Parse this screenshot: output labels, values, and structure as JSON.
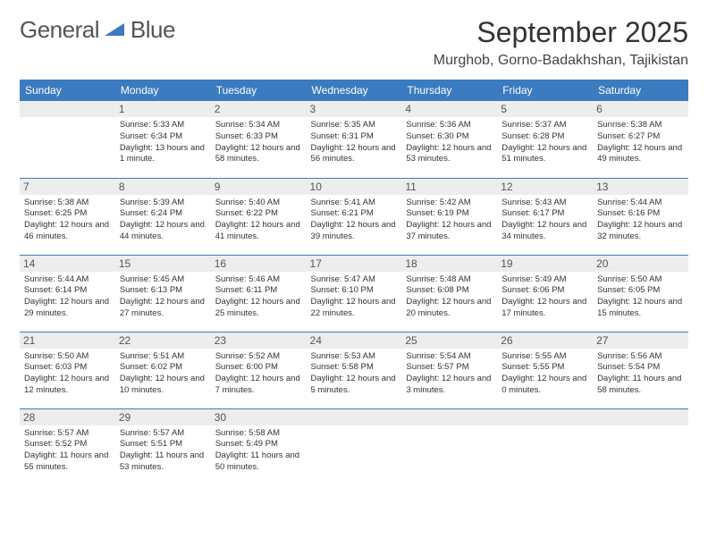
{
  "logo": {
    "word1": "General",
    "word2": "Blue"
  },
  "colors": {
    "brand": "#3b7bbf",
    "dayband": "#eceded",
    "text": "#333333"
  },
  "title": "September 2025",
  "location": "Murghob, Gorno-Badakhshan, Tajikistan",
  "weekdays": [
    "Sunday",
    "Monday",
    "Tuesday",
    "Wednesday",
    "Thursday",
    "Friday",
    "Saturday"
  ],
  "grid": [
    [
      {
        "empty": true
      },
      {
        "n": "1",
        "sr": "Sunrise: 5:33 AM",
        "ss": "Sunset: 6:34 PM",
        "dl": "Daylight: 13 hours and 1 minute."
      },
      {
        "n": "2",
        "sr": "Sunrise: 5:34 AM",
        "ss": "Sunset: 6:33 PM",
        "dl": "Daylight: 12 hours and 58 minutes."
      },
      {
        "n": "3",
        "sr": "Sunrise: 5:35 AM",
        "ss": "Sunset: 6:31 PM",
        "dl": "Daylight: 12 hours and 56 minutes."
      },
      {
        "n": "4",
        "sr": "Sunrise: 5:36 AM",
        "ss": "Sunset: 6:30 PM",
        "dl": "Daylight: 12 hours and 53 minutes."
      },
      {
        "n": "5",
        "sr": "Sunrise: 5:37 AM",
        "ss": "Sunset: 6:28 PM",
        "dl": "Daylight: 12 hours and 51 minutes."
      },
      {
        "n": "6",
        "sr": "Sunrise: 5:38 AM",
        "ss": "Sunset: 6:27 PM",
        "dl": "Daylight: 12 hours and 49 minutes."
      }
    ],
    [
      {
        "n": "7",
        "sr": "Sunrise: 5:38 AM",
        "ss": "Sunset: 6:25 PM",
        "dl": "Daylight: 12 hours and 46 minutes."
      },
      {
        "n": "8",
        "sr": "Sunrise: 5:39 AM",
        "ss": "Sunset: 6:24 PM",
        "dl": "Daylight: 12 hours and 44 minutes."
      },
      {
        "n": "9",
        "sr": "Sunrise: 5:40 AM",
        "ss": "Sunset: 6:22 PM",
        "dl": "Daylight: 12 hours and 41 minutes."
      },
      {
        "n": "10",
        "sr": "Sunrise: 5:41 AM",
        "ss": "Sunset: 6:21 PM",
        "dl": "Daylight: 12 hours and 39 minutes."
      },
      {
        "n": "11",
        "sr": "Sunrise: 5:42 AM",
        "ss": "Sunset: 6:19 PM",
        "dl": "Daylight: 12 hours and 37 minutes."
      },
      {
        "n": "12",
        "sr": "Sunrise: 5:43 AM",
        "ss": "Sunset: 6:17 PM",
        "dl": "Daylight: 12 hours and 34 minutes."
      },
      {
        "n": "13",
        "sr": "Sunrise: 5:44 AM",
        "ss": "Sunset: 6:16 PM",
        "dl": "Daylight: 12 hours and 32 minutes."
      }
    ],
    [
      {
        "n": "14",
        "sr": "Sunrise: 5:44 AM",
        "ss": "Sunset: 6:14 PM",
        "dl": "Daylight: 12 hours and 29 minutes."
      },
      {
        "n": "15",
        "sr": "Sunrise: 5:45 AM",
        "ss": "Sunset: 6:13 PM",
        "dl": "Daylight: 12 hours and 27 minutes."
      },
      {
        "n": "16",
        "sr": "Sunrise: 5:46 AM",
        "ss": "Sunset: 6:11 PM",
        "dl": "Daylight: 12 hours and 25 minutes."
      },
      {
        "n": "17",
        "sr": "Sunrise: 5:47 AM",
        "ss": "Sunset: 6:10 PM",
        "dl": "Daylight: 12 hours and 22 minutes."
      },
      {
        "n": "18",
        "sr": "Sunrise: 5:48 AM",
        "ss": "Sunset: 6:08 PM",
        "dl": "Daylight: 12 hours and 20 minutes."
      },
      {
        "n": "19",
        "sr": "Sunrise: 5:49 AM",
        "ss": "Sunset: 6:06 PM",
        "dl": "Daylight: 12 hours and 17 minutes."
      },
      {
        "n": "20",
        "sr": "Sunrise: 5:50 AM",
        "ss": "Sunset: 6:05 PM",
        "dl": "Daylight: 12 hours and 15 minutes."
      }
    ],
    [
      {
        "n": "21",
        "sr": "Sunrise: 5:50 AM",
        "ss": "Sunset: 6:03 PM",
        "dl": "Daylight: 12 hours and 12 minutes."
      },
      {
        "n": "22",
        "sr": "Sunrise: 5:51 AM",
        "ss": "Sunset: 6:02 PM",
        "dl": "Daylight: 12 hours and 10 minutes."
      },
      {
        "n": "23",
        "sr": "Sunrise: 5:52 AM",
        "ss": "Sunset: 6:00 PM",
        "dl": "Daylight: 12 hours and 7 minutes."
      },
      {
        "n": "24",
        "sr": "Sunrise: 5:53 AM",
        "ss": "Sunset: 5:58 PM",
        "dl": "Daylight: 12 hours and 5 minutes."
      },
      {
        "n": "25",
        "sr": "Sunrise: 5:54 AM",
        "ss": "Sunset: 5:57 PM",
        "dl": "Daylight: 12 hours and 3 minutes."
      },
      {
        "n": "26",
        "sr": "Sunrise: 5:55 AM",
        "ss": "Sunset: 5:55 PM",
        "dl": "Daylight: 12 hours and 0 minutes."
      },
      {
        "n": "27",
        "sr": "Sunrise: 5:56 AM",
        "ss": "Sunset: 5:54 PM",
        "dl": "Daylight: 11 hours and 58 minutes."
      }
    ],
    [
      {
        "n": "28",
        "sr": "Sunrise: 5:57 AM",
        "ss": "Sunset: 5:52 PM",
        "dl": "Daylight: 11 hours and 55 minutes."
      },
      {
        "n": "29",
        "sr": "Sunrise: 5:57 AM",
        "ss": "Sunset: 5:51 PM",
        "dl": "Daylight: 11 hours and 53 minutes."
      },
      {
        "n": "30",
        "sr": "Sunrise: 5:58 AM",
        "ss": "Sunset: 5:49 PM",
        "dl": "Daylight: 11 hours and 50 minutes."
      },
      {
        "empty": true
      },
      {
        "empty": true
      },
      {
        "empty": true
      },
      {
        "empty": true
      }
    ]
  ]
}
